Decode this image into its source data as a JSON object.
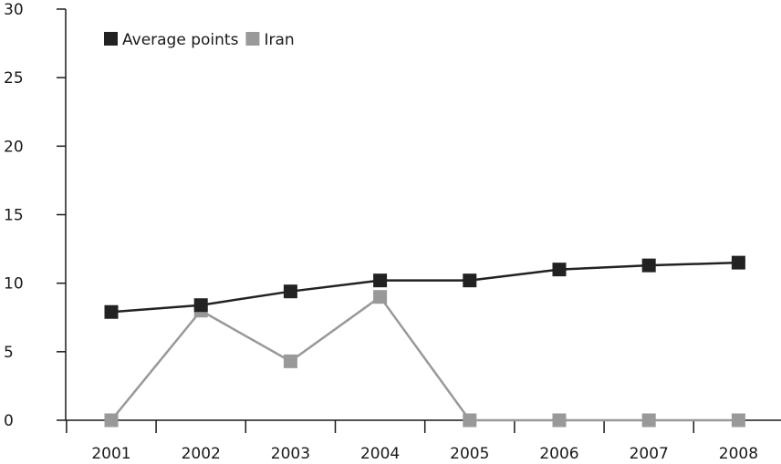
{
  "chart_data": {
    "type": "line",
    "title": "",
    "xlabel": "",
    "ylabel": "",
    "categories": [
      "2001",
      "2002",
      "2003",
      "2004",
      "2005",
      "2006",
      "2007",
      "2008"
    ],
    "ylim": [
      0,
      30
    ],
    "yticks": [
      "0",
      "5",
      "10",
      "15",
      "20",
      "25",
      "30"
    ],
    "grid": false,
    "legend_position": "top-left",
    "series": [
      {
        "name": "Average points",
        "color": "#222222",
        "values": [
          7.9,
          8.4,
          9.4,
          10.2,
          10.2,
          11.0,
          11.3,
          11.5
        ]
      },
      {
        "name": "Iran",
        "color": "#999999",
        "values": [
          0,
          8.0,
          4.3,
          9.0,
          0,
          0,
          0,
          0
        ]
      }
    ]
  }
}
